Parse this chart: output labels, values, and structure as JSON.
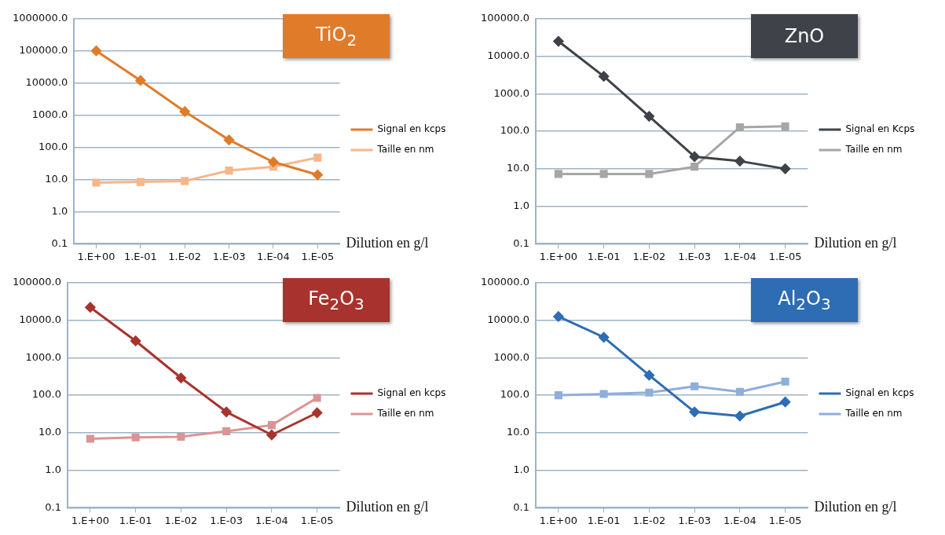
{
  "chart_data": [
    {
      "type": "line",
      "title": "TiO$_{2}$",
      "xlabel": "Dilution en g/l",
      "categories": [
        "1.E+00",
        "1.E-01",
        "1.E-02",
        "1.E-03",
        "1.E-04",
        "1.E-05"
      ],
      "log": "y",
      "ylim": [
        0.1,
        1000000
      ],
      "yticks": [
        {
          "value": 0.1,
          "label": "0.1"
        },
        {
          "value": 1,
          "label": "1.0"
        },
        {
          "value": 10,
          "label": "10.0"
        },
        {
          "value": 100,
          "label": "100.0"
        },
        {
          "value": 1000,
          "label": "1000.0"
        },
        {
          "value": 10000,
          "label": "10000.0"
        },
        {
          "value": 100000,
          "label": "100000.0"
        },
        {
          "value": 1000000,
          "label": "1000000.0"
        }
      ],
      "grid": "y",
      "legend": "right",
      "series": [
        {
          "name": "Signal en kcps",
          "color": "#e07b2a",
          "marker": "diamond",
          "values": [
            100000,
            12000,
            1300,
            170,
            35,
            14
          ]
        },
        {
          "name": "Taille en nm",
          "color": "#f7b58a",
          "marker": "square",
          "values": [
            8,
            8.4,
            9,
            19,
            25,
            48
          ]
        }
      ]
    },
    {
      "type": "line",
      "title": "ZnO",
      "xlabel": "Dilution en g/l",
      "categories": [
        "1.E+00",
        "1.E-01",
        "1.E-02",
        "1.E-03",
        "1.E-04",
        "1.E-05"
      ],
      "log": "y",
      "ylim": [
        0.1,
        100000
      ],
      "yticks": [
        {
          "value": 0.1,
          "label": "0.1"
        },
        {
          "value": 1,
          "label": "1.0"
        },
        {
          "value": 10,
          "label": "10.0"
        },
        {
          "value": 100,
          "label": "100.0"
        },
        {
          "value": 1000,
          "label": "1000.0"
        },
        {
          "value": 10000,
          "label": "10000.0"
        },
        {
          "value": 100000,
          "label": "100000.0"
        }
      ],
      "grid": "y",
      "legend": "right",
      "series": [
        {
          "name": "Signal en Kcps",
          "color": "#3f4248",
          "marker": "diamond",
          "values": [
            25000,
            2900,
            250,
            21,
            16,
            10
          ]
        },
        {
          "name": "Taille en nm",
          "color": "#a6a6a6",
          "marker": "square",
          "values": [
            7.3,
            7.3,
            7.3,
            11.4,
            128,
            135
          ]
        }
      ]
    },
    {
      "type": "line",
      "title": "Fe$_{2}$O$_{3}$",
      "xlabel": "Dilution en g/l",
      "categories": [
        "1.E+00",
        "1.E-01",
        "1.E-02",
        "1.E-03",
        "1.E-04",
        "1.E-05"
      ],
      "log": "y",
      "ylim": [
        0.1,
        100000
      ],
      "yticks": [
        {
          "value": 0.1,
          "label": "0.1"
        },
        {
          "value": 1,
          "label": "1.0"
        },
        {
          "value": 10,
          "label": "10.0"
        },
        {
          "value": 100,
          "label": "100.0"
        },
        {
          "value": 1000,
          "label": "1000.0"
        },
        {
          "value": 10000,
          "label": "10000.0"
        },
        {
          "value": 100000,
          "label": "100000.0"
        }
      ],
      "grid": "y",
      "legend": "right",
      "series": [
        {
          "name": "Signal en kcps",
          "color": "#a8332e",
          "marker": "diamond",
          "values": [
            22000,
            2800,
            290,
            36,
            8.8,
            34
          ]
        },
        {
          "name": "Taille en nm",
          "color": "#d99594",
          "marker": "square",
          "values": [
            6.9,
            7.5,
            7.8,
            11,
            16,
            85
          ]
        }
      ]
    },
    {
      "type": "line",
      "title": "Al$_{2}$O$_{3}$",
      "xlabel": "Dilution en g/l",
      "categories": [
        "1.E+00",
        "1.E-01",
        "1.E-02",
        "1.E-03",
        "1.E-04",
        "1.E-05"
      ],
      "log": "y",
      "ylim": [
        0.1,
        100000
      ],
      "yticks": [
        {
          "value": 0.1,
          "label": "0.1"
        },
        {
          "value": 1,
          "label": "1.0"
        },
        {
          "value": 10,
          "label": "10.0"
        },
        {
          "value": 100,
          "label": "100.0"
        },
        {
          "value": 1000,
          "label": "1000.0"
        },
        {
          "value": 10000,
          "label": "10000.0"
        },
        {
          "value": 100000,
          "label": "100000.0"
        }
      ],
      "grid": "y",
      "legend": "right",
      "series": [
        {
          "name": "Signal en kcps",
          "color": "#2e6db3",
          "marker": "diamond",
          "values": [
            12500,
            3500,
            340,
            36,
            28,
            66
          ]
        },
        {
          "name": "Taille en nm",
          "color": "#8eaedb",
          "marker": "square",
          "values": [
            100,
            108,
            118,
            173,
            123,
            230
          ]
        }
      ]
    }
  ]
}
